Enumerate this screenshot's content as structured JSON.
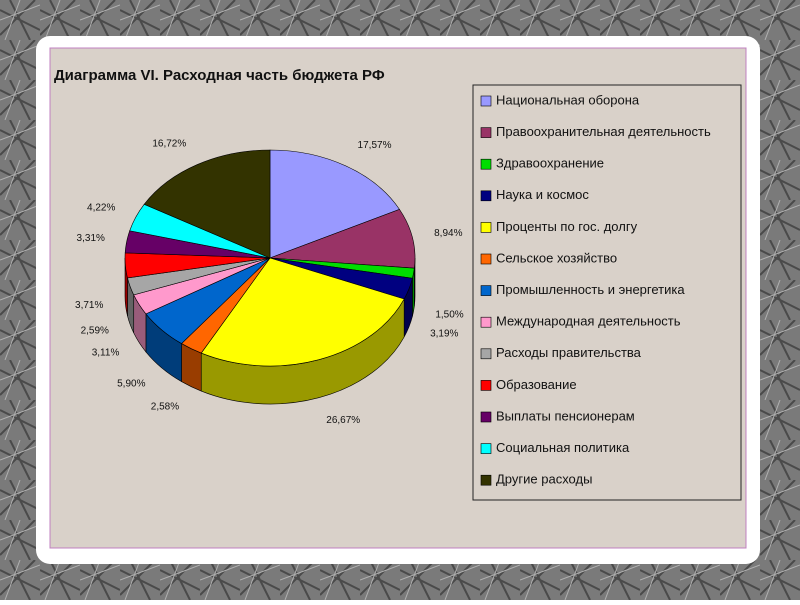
{
  "chart_data": {
    "type": "pie",
    "title": "Диаграмма VI. Расходная часть бюджета РФ",
    "legend": "right",
    "categories": [
      "Национальная оборона",
      "Правоохранительная деятельность",
      "Здравоохранение",
      "Наука и космос",
      "Проценты по гос. долгу",
      "Сельское хозяйство",
      "Промышленность и энергетика",
      "Международная деятельность",
      "Расходы правительства",
      "Образование",
      "Выплаты пенсионерам",
      "Социальная политика",
      "Другие расходы"
    ],
    "values": [
      17.57,
      8.94,
      1.5,
      3.19,
      26.67,
      2.58,
      5.9,
      3.11,
      2.59,
      3.71,
      3.31,
      4.22,
      16.72
    ],
    "value_labels": [
      "17,57%",
      "8,94%",
      "1,50%",
      "3,19%",
      "26,67%",
      "2,58%",
      "5,90%",
      "3,11%",
      "2,59%",
      "3,71%",
      "3,31%",
      "4,22%",
      "16,72%"
    ],
    "colors": [
      "#9999ff",
      "#993366",
      "#00dd00",
      "#000080",
      "#ffff00",
      "#ff6600",
      "#0066cc",
      "#ff99cc",
      "#a6a6a6",
      "#ff0000",
      "#660066",
      "#00ffff",
      "#333300"
    ]
  }
}
